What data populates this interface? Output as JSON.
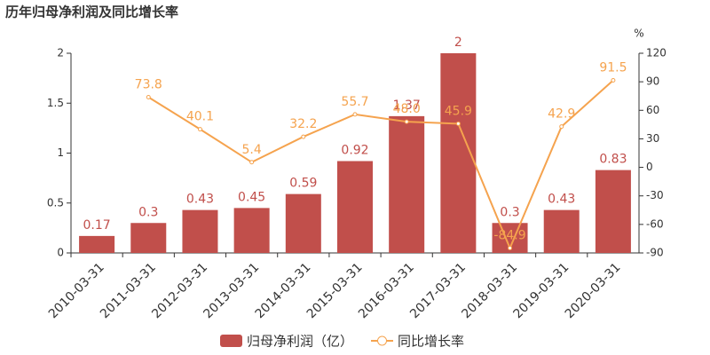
{
  "chart_data": {
    "type": "bar-line",
    "title": "历年归母净利润及同比增长率",
    "y2label": "%",
    "categories": [
      "2010-03-31",
      "2011-03-31",
      "2012-03-31",
      "2013-03-31",
      "2014-03-31",
      "2015-03-31",
      "2016-03-31",
      "2017-03-31",
      "2018-03-31",
      "2019-03-31",
      "2020-03-31"
    ],
    "series": [
      {
        "name": "归母净利润（亿）",
        "type": "bar",
        "color": "#c14f4b",
        "values": [
          0.17,
          0.3,
          0.43,
          0.45,
          0.59,
          0.92,
          1.37,
          2,
          0.3,
          0.43,
          0.83
        ]
      },
      {
        "name": "同比增长率",
        "type": "line",
        "axis": "y2",
        "color": "#f5a34e",
        "values": [
          null,
          73.8,
          40.1,
          5.4,
          32.2,
          55.7,
          48.0,
          45.9,
          -84.9,
          42.9,
          91.5
        ],
        "value_labels": [
          null,
          "73.8",
          "40.1",
          "5.4",
          "32.2",
          "55.7",
          "48.0",
          "45.9",
          "-84.9",
          "42.9",
          "91.5"
        ]
      }
    ],
    "ylim": [
      0,
      2
    ],
    "yticks": [
      0,
      0.5,
      1,
      1.5,
      2
    ],
    "y2lim": [
      -90,
      120
    ],
    "y2ticks": [
      -90,
      -60,
      -30,
      0,
      30,
      60,
      90,
      120
    ],
    "legend": "bottom"
  }
}
